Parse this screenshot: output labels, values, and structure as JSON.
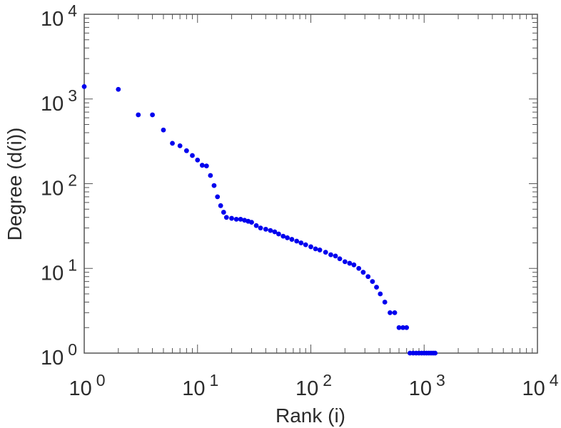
{
  "chart_data": {
    "type": "scatter",
    "title": "",
    "xlabel": "Rank (i)",
    "ylabel": "Degree (d(i))",
    "xscale": "log",
    "yscale": "log",
    "xlim": [
      1,
      10000
    ],
    "ylim": [
      1,
      10000
    ],
    "grid": false,
    "marker_color": "#0000ee",
    "x_tick_labels": [
      {
        "base": "10",
        "exp": "0"
      },
      {
        "base": "10",
        "exp": "1"
      },
      {
        "base": "10",
        "exp": "2"
      },
      {
        "base": "10",
        "exp": "3"
      },
      {
        "base": "10",
        "exp": "4"
      }
    ],
    "y_tick_labels": [
      {
        "base": "10",
        "exp": "0"
      },
      {
        "base": "10",
        "exp": "1"
      },
      {
        "base": "10",
        "exp": "2"
      },
      {
        "base": "10",
        "exp": "3"
      },
      {
        "base": "10",
        "exp": "4"
      }
    ],
    "points": [
      [
        1,
        1400
      ],
      [
        2,
        1300
      ],
      [
        3,
        650
      ],
      [
        4,
        650
      ],
      [
        5,
        430
      ],
      [
        6,
        300
      ],
      [
        7,
        280
      ],
      [
        8,
        245
      ],
      [
        9,
        215
      ],
      [
        10,
        190
      ],
      [
        11,
        165
      ],
      [
        12,
        162
      ],
      [
        13,
        125
      ],
      [
        14,
        95
      ],
      [
        15,
        70
      ],
      [
        16,
        55
      ],
      [
        17,
        46
      ],
      [
        18,
        40
      ],
      [
        20,
        39
      ],
      [
        22,
        38
      ],
      [
        24,
        38
      ],
      [
        26,
        37
      ],
      [
        28,
        36
      ],
      [
        30,
        35
      ],
      [
        33,
        32
      ],
      [
        36,
        30
      ],
      [
        40,
        29
      ],
      [
        44,
        28
      ],
      [
        48,
        27
      ],
      [
        52,
        25.5
      ],
      [
        57,
        24
      ],
      [
        62,
        23
      ],
      [
        68,
        22
      ],
      [
        75,
        21
      ],
      [
        82,
        20
      ],
      [
        90,
        19
      ],
      [
        100,
        18
      ],
      [
        110,
        17
      ],
      [
        120,
        16.5
      ],
      [
        135,
        15.5
      ],
      [
        150,
        14.5
      ],
      [
        165,
        14
      ],
      [
        180,
        13
      ],
      [
        200,
        12
      ],
      [
        220,
        11.5
      ],
      [
        240,
        11
      ],
      [
        265,
        10
      ],
      [
        290,
        9
      ],
      [
        320,
        8
      ],
      [
        350,
        7
      ],
      [
        380,
        6
      ],
      [
        410,
        5
      ],
      [
        450,
        4
      ],
      [
        500,
        3
      ],
      [
        550,
        3
      ],
      [
        600,
        2
      ],
      [
        650,
        2
      ],
      [
        700,
        2
      ],
      [
        750,
        1
      ],
      [
        800,
        1
      ],
      [
        850,
        1
      ],
      [
        900,
        1
      ],
      [
        950,
        1
      ],
      [
        1000,
        1
      ],
      [
        1050,
        1
      ],
      [
        1100,
        1
      ],
      [
        1150,
        1
      ],
      [
        1200,
        1
      ],
      [
        1250,
        1
      ]
    ]
  }
}
